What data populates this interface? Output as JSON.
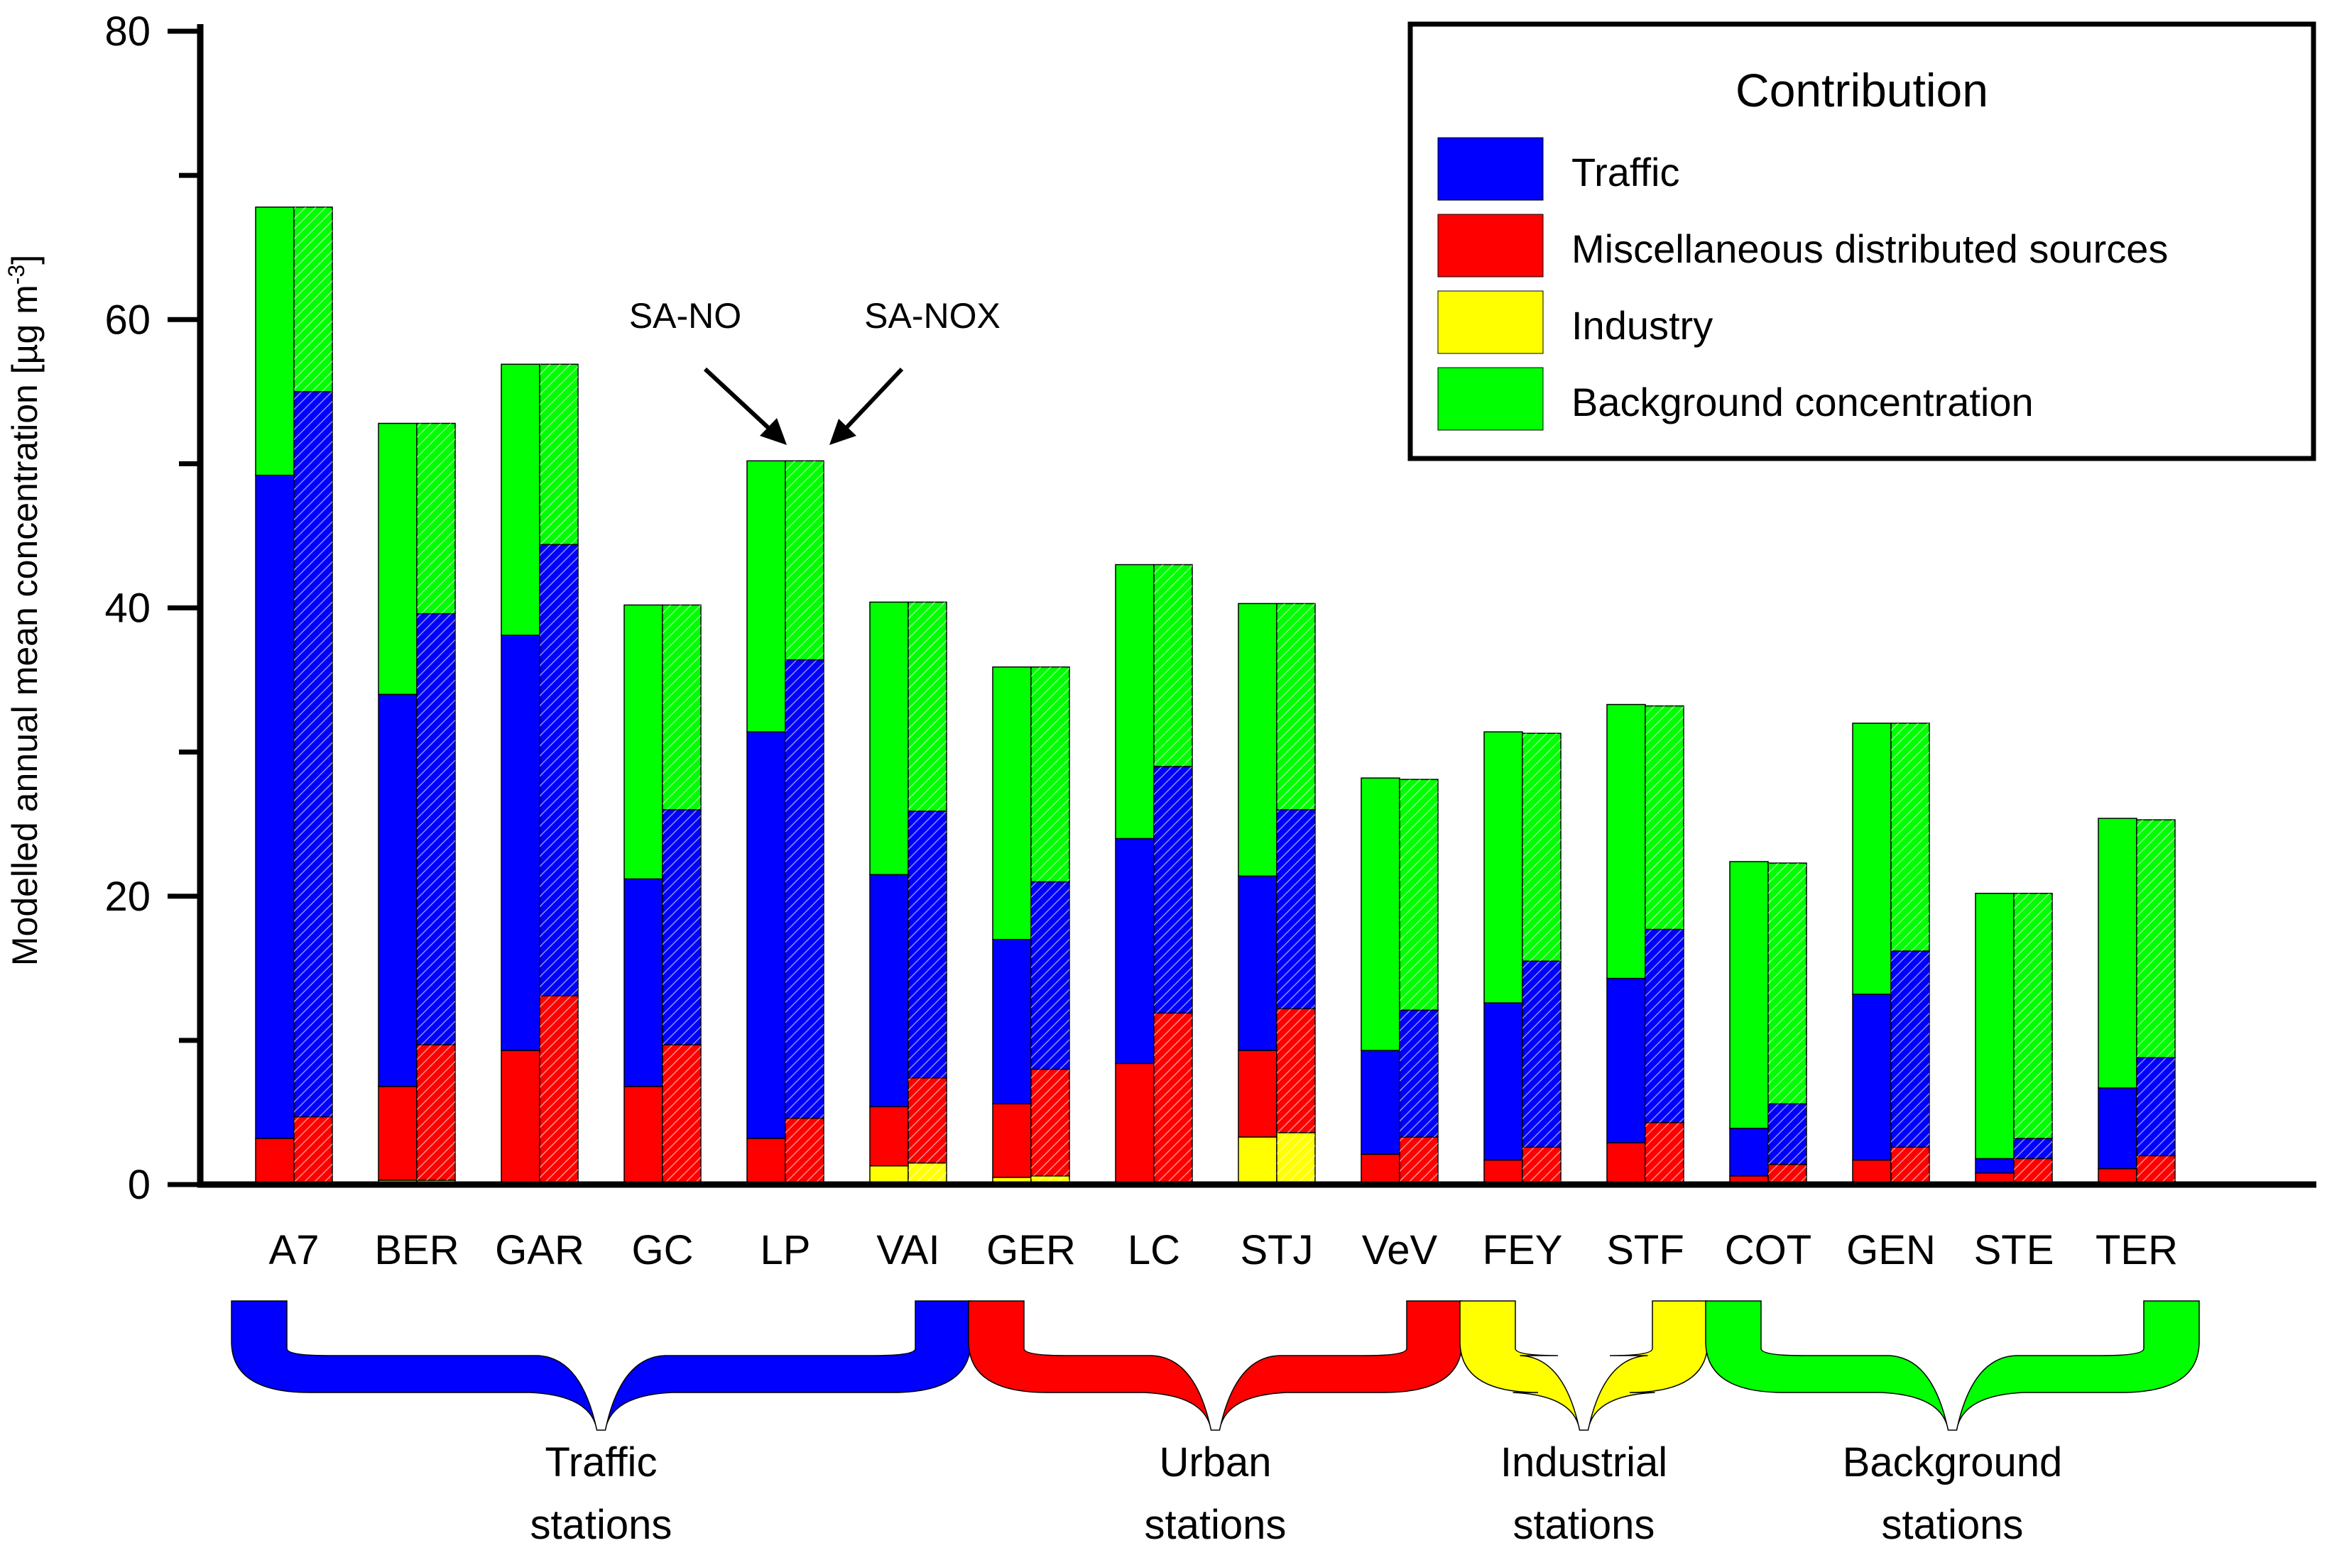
{
  "chart_data": {
    "type": "bar",
    "subtype": "stacked, paired (SA-NO solid / SA-NOX hatched)",
    "ylabel": "Modelled annual mean concentration [µg m",
    "ylabel_sup": "-3",
    "ylabel_end": "]",
    "ylim": [
      0,
      80
    ],
    "yticks": [
      0,
      20,
      40,
      60,
      80
    ],
    "categories": [
      "A7",
      "BER",
      "GAR",
      "GC",
      "LP",
      "VAI",
      "GER",
      "LC",
      "STJ",
      "VeV",
      "FEY",
      "STF",
      "COT",
      "GEN",
      "STE",
      "TER"
    ],
    "series_order": [
      "industry",
      "misc",
      "traffic",
      "background"
    ],
    "colors": {
      "traffic": "#0000ff",
      "misc": "#ff0000",
      "industry": "#ffff00",
      "background": "#00ff00"
    },
    "legend": {
      "title": "Contribution",
      "position": "top-right",
      "entries": [
        {
          "key": "traffic",
          "label": "Traffic"
        },
        {
          "key": "misc",
          "label": "Miscellaneous distributed sources"
        },
        {
          "key": "industry",
          "label": "Industry"
        },
        {
          "key": "background",
          "label": "Background concentration"
        }
      ]
    },
    "bars": {
      "sa_no": [
        {
          "industry": 0,
          "misc": 3.2,
          "traffic": 46,
          "background": 18.6
        },
        {
          "industry": 0.3,
          "misc": 6.5,
          "traffic": 27.2,
          "background": 18.8
        },
        {
          "industry": 0,
          "misc": 9.3,
          "traffic": 28.8,
          "background": 18.8
        },
        {
          "industry": 0,
          "misc": 6.8,
          "traffic": 14.4,
          "background": 19
        },
        {
          "industry": 0,
          "misc": 3.2,
          "traffic": 28.2,
          "background": 18.8
        },
        {
          "industry": 1.3,
          "misc": 4.1,
          "traffic": 16.1,
          "background": 18.9
        },
        {
          "industry": 0.5,
          "misc": 5.1,
          "traffic": 11.4,
          "background": 18.9
        },
        {
          "industry": 0,
          "misc": 8.4,
          "traffic": 15.6,
          "background": 19
        },
        {
          "industry": 3.3,
          "misc": 6,
          "traffic": 12.1,
          "background": 18.9
        },
        {
          "industry": 0,
          "misc": 2.1,
          "traffic": 7.2,
          "background": 18.9
        },
        {
          "industry": 0,
          "misc": 1.7,
          "traffic": 10.9,
          "background": 18.8
        },
        {
          "industry": 0,
          "misc": 2.9,
          "traffic": 11.4,
          "background": 19
        },
        {
          "industry": 0,
          "misc": 0.6,
          "traffic": 3.3,
          "background": 18.5
        },
        {
          "industry": 0,
          "misc": 1.7,
          "traffic": 11.5,
          "background": 18.8
        },
        {
          "industry": 0,
          "misc": 0.8,
          "traffic": 1,
          "background": 18.4
        },
        {
          "industry": 0,
          "misc": 1.1,
          "traffic": 5.6,
          "background": 18.7
        }
      ],
      "sa_nox": [
        {
          "industry": 0,
          "misc": 4.7,
          "traffic": 50.3,
          "background": 12.8
        },
        {
          "industry": 0.3,
          "misc": 9.4,
          "traffic": 29.9,
          "background": 13.2
        },
        {
          "industry": 0,
          "misc": 13.1,
          "traffic": 31.3,
          "background": 12.5
        },
        {
          "industry": 0,
          "misc": 9.7,
          "traffic": 16.3,
          "background": 14.2
        },
        {
          "industry": 0,
          "misc": 4.6,
          "traffic": 31.8,
          "background": 13.8
        },
        {
          "industry": 1.5,
          "misc": 5.9,
          "traffic": 18.5,
          "background": 14.5
        },
        {
          "industry": 0.6,
          "misc": 7.4,
          "traffic": 13,
          "background": 14.9
        },
        {
          "industry": 0,
          "misc": 11.9,
          "traffic": 17.1,
          "background": 14
        },
        {
          "industry": 3.6,
          "misc": 8.6,
          "traffic": 13.8,
          "background": 14.3
        },
        {
          "industry": 0,
          "misc": 3.3,
          "traffic": 8.8,
          "background": 16
        },
        {
          "industry": 0,
          "misc": 2.6,
          "traffic": 12.9,
          "background": 15.8
        },
        {
          "industry": 0,
          "misc": 4.3,
          "traffic": 13.4,
          "background": 15.5
        },
        {
          "industry": 0,
          "misc": 1.4,
          "traffic": 4.2,
          "background": 16.7
        },
        {
          "industry": 0,
          "misc": 2.6,
          "traffic": 13.6,
          "background": 15.8
        },
        {
          "industry": 0,
          "misc": 1.8,
          "traffic": 1.4,
          "background": 17
        },
        {
          "industry": 0,
          "misc": 2,
          "traffic": 6.8,
          "background": 16.5
        }
      ]
    },
    "annotations": [
      {
        "label": "SA-NO",
        "points_to": "LP solid bar"
      },
      {
        "label": "SA-NOX",
        "points_to": "LP hatched bar"
      }
    ],
    "groups": [
      {
        "line1": "Traffic",
        "line2": "stations",
        "from": 0,
        "to": 5,
        "color": "#0000ff"
      },
      {
        "line1": "Urban",
        "line2": "stations",
        "from": 6,
        "to": 9,
        "color": "#ff0000"
      },
      {
        "line1": "Industrial",
        "line2": "stations",
        "from": 10,
        "to": 11,
        "color": "#ffff00"
      },
      {
        "line1": "Background",
        "line2": "stations",
        "from": 12,
        "to": 15,
        "color": "#00ff00"
      }
    ]
  }
}
